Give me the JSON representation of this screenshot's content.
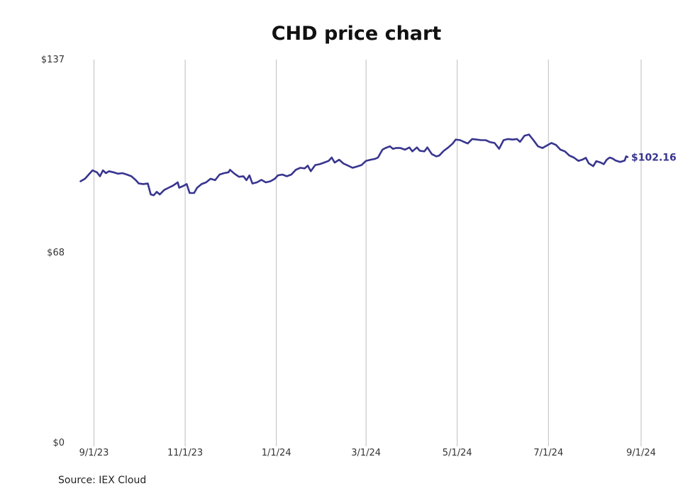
{
  "chart_data": {
    "type": "line",
    "title": "CHD price chart",
    "source": "Source: IEX Cloud",
    "ylim": [
      0,
      137
    ],
    "y_ticks": [
      {
        "value": 0,
        "label": "$0"
      },
      {
        "value": 68,
        "label": "$68"
      },
      {
        "value": 137,
        "label": "$137"
      }
    ],
    "xlim": [
      "2023-08-18",
      "2024-09-01"
    ],
    "x_ticks": [
      {
        "date": "2023-09-01",
        "label": "9/1/23"
      },
      {
        "date": "2023-11-01",
        "label": "11/1/23"
      },
      {
        "date": "2024-01-01",
        "label": "1/1/24"
      },
      {
        "date": "2024-03-01",
        "label": "3/1/24"
      },
      {
        "date": "2024-05-01",
        "label": "5/1/24"
      },
      {
        "date": "2024-07-01",
        "label": "7/1/24"
      },
      {
        "date": "2024-09-01",
        "label": "9/1/24"
      }
    ],
    "grid": {
      "vertical": true,
      "horizontal": false
    },
    "line_color": "#38358f",
    "last_value_label": "$102.16",
    "series": [
      {
        "points": [
          [
            "2023-08-23",
            93.5
          ],
          [
            "2023-08-26",
            94.4
          ],
          [
            "2023-08-29",
            96.2
          ],
          [
            "2023-08-31",
            97.4
          ],
          [
            "2023-09-03",
            96.7
          ],
          [
            "2023-09-05",
            95.3
          ],
          [
            "2023-09-07",
            97.4
          ],
          [
            "2023-09-09",
            96.4
          ],
          [
            "2023-09-11",
            97.1
          ],
          [
            "2023-09-14",
            96.7
          ],
          [
            "2023-09-17",
            96.2
          ],
          [
            "2023-09-20",
            96.4
          ],
          [
            "2023-09-23",
            95.9
          ],
          [
            "2023-09-26",
            95.3
          ],
          [
            "2023-09-29",
            93.9
          ],
          [
            "2023-10-01",
            92.7
          ],
          [
            "2023-10-04",
            92.5
          ],
          [
            "2023-10-07",
            92.7
          ],
          [
            "2023-10-09",
            88.8
          ],
          [
            "2023-10-11",
            88.5
          ],
          [
            "2023-10-13",
            89.7
          ],
          [
            "2023-10-15",
            88.8
          ],
          [
            "2023-10-18",
            90.4
          ],
          [
            "2023-10-21",
            91.2
          ],
          [
            "2023-10-24",
            92.0
          ],
          [
            "2023-10-27",
            93.1
          ],
          [
            "2023-10-28",
            91.2
          ],
          [
            "2023-10-31",
            91.9
          ],
          [
            "2023-11-02",
            92.5
          ],
          [
            "2023-11-04",
            89.3
          ],
          [
            "2023-11-07",
            89.3
          ],
          [
            "2023-11-09",
            91.2
          ],
          [
            "2023-11-12",
            92.5
          ],
          [
            "2023-11-15",
            93.1
          ],
          [
            "2023-11-18",
            94.4
          ],
          [
            "2023-11-21",
            93.9
          ],
          [
            "2023-11-24",
            95.9
          ],
          [
            "2023-11-27",
            96.4
          ],
          [
            "2023-11-30",
            96.7
          ],
          [
            "2023-12-01",
            97.6
          ],
          [
            "2023-12-04",
            96.2
          ],
          [
            "2023-12-07",
            95.1
          ],
          [
            "2023-12-10",
            95.3
          ],
          [
            "2023-12-12",
            93.9
          ],
          [
            "2023-12-14",
            95.6
          ],
          [
            "2023-12-16",
            92.7
          ],
          [
            "2023-12-19",
            93.1
          ],
          [
            "2023-12-22",
            94.0
          ],
          [
            "2023-12-25",
            93.1
          ],
          [
            "2023-12-28",
            93.5
          ],
          [
            "2023-12-31",
            94.4
          ],
          [
            "2024-01-02",
            95.6
          ],
          [
            "2024-01-05",
            95.9
          ],
          [
            "2024-01-08",
            95.3
          ],
          [
            "2024-01-11",
            95.9
          ],
          [
            "2024-01-14",
            97.6
          ],
          [
            "2024-01-17",
            98.3
          ],
          [
            "2024-01-20",
            98.1
          ],
          [
            "2024-01-22",
            99.1
          ],
          [
            "2024-01-24",
            97.1
          ],
          [
            "2024-01-27",
            99.3
          ],
          [
            "2024-01-30",
            99.6
          ],
          [
            "2024-02-02",
            100.2
          ],
          [
            "2024-02-05",
            100.8
          ],
          [
            "2024-02-07",
            102.0
          ],
          [
            "2024-02-09",
            100.2
          ],
          [
            "2024-02-12",
            101.2
          ],
          [
            "2024-02-15",
            99.8
          ],
          [
            "2024-02-18",
            99.1
          ],
          [
            "2024-02-21",
            98.3
          ],
          [
            "2024-02-24",
            98.8
          ],
          [
            "2024-02-27",
            99.3
          ],
          [
            "2024-03-01",
            100.8
          ],
          [
            "2024-03-04",
            101.2
          ],
          [
            "2024-03-07",
            101.5
          ],
          [
            "2024-03-09",
            102.0
          ],
          [
            "2024-03-12",
            104.8
          ],
          [
            "2024-03-14",
            105.4
          ],
          [
            "2024-03-17",
            106.0
          ],
          [
            "2024-03-19",
            105.1
          ],
          [
            "2024-03-21",
            105.4
          ],
          [
            "2024-03-24",
            105.4
          ],
          [
            "2024-03-27",
            104.8
          ],
          [
            "2024-03-30",
            105.6
          ],
          [
            "2024-04-01",
            104.2
          ],
          [
            "2024-04-04",
            105.6
          ],
          [
            "2024-04-06",
            104.4
          ],
          [
            "2024-04-09",
            104.2
          ],
          [
            "2024-04-11",
            105.6
          ],
          [
            "2024-04-14",
            103.2
          ],
          [
            "2024-04-17",
            102.4
          ],
          [
            "2024-04-19",
            102.7
          ],
          [
            "2024-04-22",
            104.4
          ],
          [
            "2024-04-25",
            105.6
          ],
          [
            "2024-04-28",
            107.0
          ],
          [
            "2024-04-30",
            108.4
          ],
          [
            "2024-05-03",
            108.2
          ],
          [
            "2024-05-05",
            107.7
          ],
          [
            "2024-05-08",
            107.0
          ],
          [
            "2024-05-11",
            108.6
          ],
          [
            "2024-05-14",
            108.4
          ],
          [
            "2024-05-17",
            108.2
          ],
          [
            "2024-05-20",
            108.2
          ],
          [
            "2024-05-23",
            107.5
          ],
          [
            "2024-05-26",
            107.2
          ],
          [
            "2024-05-29",
            105.1
          ],
          [
            "2024-06-01",
            108.2
          ],
          [
            "2024-06-04",
            108.6
          ],
          [
            "2024-06-07",
            108.4
          ],
          [
            "2024-06-10",
            108.6
          ],
          [
            "2024-06-12",
            107.6
          ],
          [
            "2024-06-15",
            109.8
          ],
          [
            "2024-06-18",
            110.2
          ],
          [
            "2024-06-21",
            108.2
          ],
          [
            "2024-06-24",
            106.0
          ],
          [
            "2024-06-27",
            105.4
          ],
          [
            "2024-06-30",
            106.3
          ],
          [
            "2024-07-03",
            107.2
          ],
          [
            "2024-07-06",
            106.5
          ],
          [
            "2024-07-09",
            104.8
          ],
          [
            "2024-07-12",
            104.2
          ],
          [
            "2024-07-15",
            102.7
          ],
          [
            "2024-07-18",
            102.0
          ],
          [
            "2024-07-21",
            100.8
          ],
          [
            "2024-07-24",
            101.3
          ],
          [
            "2024-07-26",
            101.9
          ],
          [
            "2024-07-28",
            99.9
          ],
          [
            "2024-07-31",
            98.9
          ],
          [
            "2024-08-02",
            100.7
          ],
          [
            "2024-08-05",
            100.2
          ],
          [
            "2024-08-07",
            99.6
          ],
          [
            "2024-08-09",
            101.2
          ],
          [
            "2024-08-11",
            102.0
          ],
          [
            "2024-08-13",
            101.6
          ],
          [
            "2024-08-15",
            100.9
          ],
          [
            "2024-08-18",
            100.4
          ],
          [
            "2024-08-21",
            100.9
          ],
          [
            "2024-08-22",
            102.4
          ],
          [
            "2024-08-23",
            102.16
          ]
        ]
      }
    ]
  }
}
